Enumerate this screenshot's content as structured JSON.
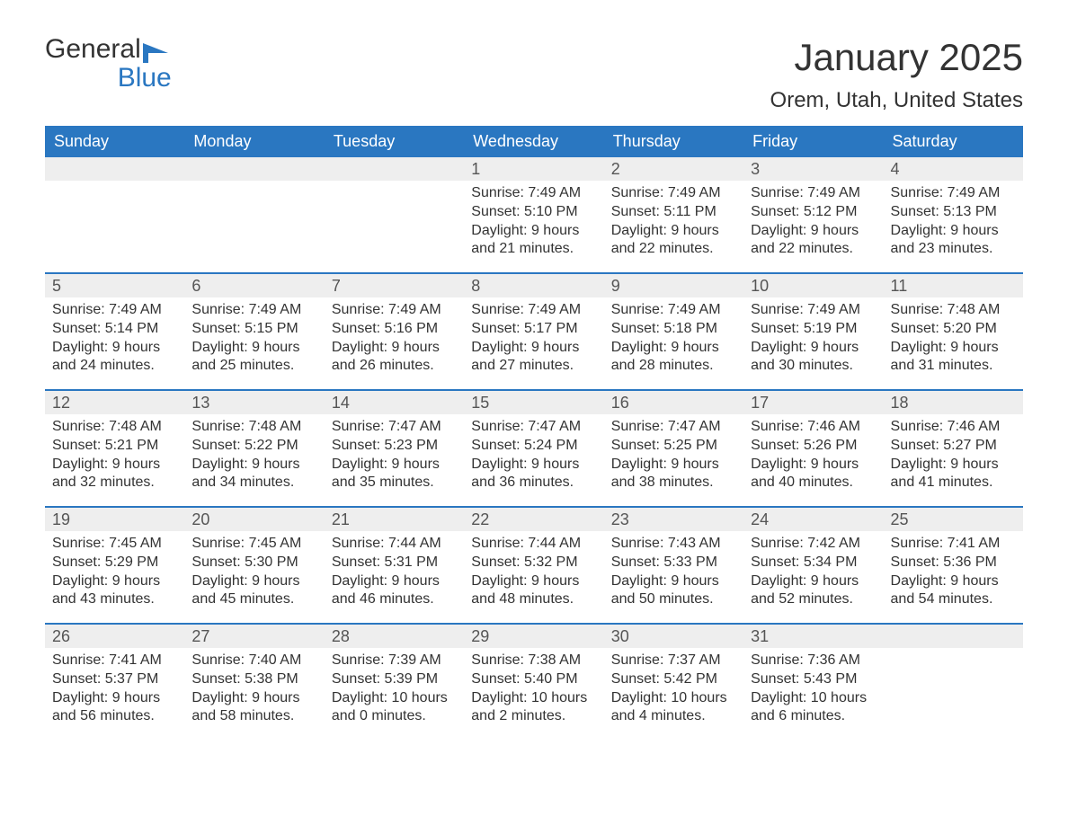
{
  "logo": {
    "text1": "General",
    "text2": "Blue",
    "text1_color": "#333333",
    "text2_color": "#2a77c1",
    "icon_color": "#2a77c1"
  },
  "title": "January 2025",
  "location": "Orem, Utah, United States",
  "colors": {
    "header_bg": "#2a77c1",
    "header_text": "#ffffff",
    "daynum_bg": "#eeeeee",
    "week_border": "#2a77c1",
    "body_text": "#333333"
  },
  "day_names": [
    "Sunday",
    "Monday",
    "Tuesday",
    "Wednesday",
    "Thursday",
    "Friday",
    "Saturday"
  ],
  "weeks": [
    [
      {
        "num": "",
        "sunrise": "",
        "sunset": "",
        "daylight1": "",
        "daylight2": ""
      },
      {
        "num": "",
        "sunrise": "",
        "sunset": "",
        "daylight1": "",
        "daylight2": ""
      },
      {
        "num": "",
        "sunrise": "",
        "sunset": "",
        "daylight1": "",
        "daylight2": ""
      },
      {
        "num": "1",
        "sunrise": "Sunrise: 7:49 AM",
        "sunset": "Sunset: 5:10 PM",
        "daylight1": "Daylight: 9 hours",
        "daylight2": "and 21 minutes."
      },
      {
        "num": "2",
        "sunrise": "Sunrise: 7:49 AM",
        "sunset": "Sunset: 5:11 PM",
        "daylight1": "Daylight: 9 hours",
        "daylight2": "and 22 minutes."
      },
      {
        "num": "3",
        "sunrise": "Sunrise: 7:49 AM",
        "sunset": "Sunset: 5:12 PM",
        "daylight1": "Daylight: 9 hours",
        "daylight2": "and 22 minutes."
      },
      {
        "num": "4",
        "sunrise": "Sunrise: 7:49 AM",
        "sunset": "Sunset: 5:13 PM",
        "daylight1": "Daylight: 9 hours",
        "daylight2": "and 23 minutes."
      }
    ],
    [
      {
        "num": "5",
        "sunrise": "Sunrise: 7:49 AM",
        "sunset": "Sunset: 5:14 PM",
        "daylight1": "Daylight: 9 hours",
        "daylight2": "and 24 minutes."
      },
      {
        "num": "6",
        "sunrise": "Sunrise: 7:49 AM",
        "sunset": "Sunset: 5:15 PM",
        "daylight1": "Daylight: 9 hours",
        "daylight2": "and 25 minutes."
      },
      {
        "num": "7",
        "sunrise": "Sunrise: 7:49 AM",
        "sunset": "Sunset: 5:16 PM",
        "daylight1": "Daylight: 9 hours",
        "daylight2": "and 26 minutes."
      },
      {
        "num": "8",
        "sunrise": "Sunrise: 7:49 AM",
        "sunset": "Sunset: 5:17 PM",
        "daylight1": "Daylight: 9 hours",
        "daylight2": "and 27 minutes."
      },
      {
        "num": "9",
        "sunrise": "Sunrise: 7:49 AM",
        "sunset": "Sunset: 5:18 PM",
        "daylight1": "Daylight: 9 hours",
        "daylight2": "and 28 minutes."
      },
      {
        "num": "10",
        "sunrise": "Sunrise: 7:49 AM",
        "sunset": "Sunset: 5:19 PM",
        "daylight1": "Daylight: 9 hours",
        "daylight2": "and 30 minutes."
      },
      {
        "num": "11",
        "sunrise": "Sunrise: 7:48 AM",
        "sunset": "Sunset: 5:20 PM",
        "daylight1": "Daylight: 9 hours",
        "daylight2": "and 31 minutes."
      }
    ],
    [
      {
        "num": "12",
        "sunrise": "Sunrise: 7:48 AM",
        "sunset": "Sunset: 5:21 PM",
        "daylight1": "Daylight: 9 hours",
        "daylight2": "and 32 minutes."
      },
      {
        "num": "13",
        "sunrise": "Sunrise: 7:48 AM",
        "sunset": "Sunset: 5:22 PM",
        "daylight1": "Daylight: 9 hours",
        "daylight2": "and 34 minutes."
      },
      {
        "num": "14",
        "sunrise": "Sunrise: 7:47 AM",
        "sunset": "Sunset: 5:23 PM",
        "daylight1": "Daylight: 9 hours",
        "daylight2": "and 35 minutes."
      },
      {
        "num": "15",
        "sunrise": "Sunrise: 7:47 AM",
        "sunset": "Sunset: 5:24 PM",
        "daylight1": "Daylight: 9 hours",
        "daylight2": "and 36 minutes."
      },
      {
        "num": "16",
        "sunrise": "Sunrise: 7:47 AM",
        "sunset": "Sunset: 5:25 PM",
        "daylight1": "Daylight: 9 hours",
        "daylight2": "and 38 minutes."
      },
      {
        "num": "17",
        "sunrise": "Sunrise: 7:46 AM",
        "sunset": "Sunset: 5:26 PM",
        "daylight1": "Daylight: 9 hours",
        "daylight2": "and 40 minutes."
      },
      {
        "num": "18",
        "sunrise": "Sunrise: 7:46 AM",
        "sunset": "Sunset: 5:27 PM",
        "daylight1": "Daylight: 9 hours",
        "daylight2": "and 41 minutes."
      }
    ],
    [
      {
        "num": "19",
        "sunrise": "Sunrise: 7:45 AM",
        "sunset": "Sunset: 5:29 PM",
        "daylight1": "Daylight: 9 hours",
        "daylight2": "and 43 minutes."
      },
      {
        "num": "20",
        "sunrise": "Sunrise: 7:45 AM",
        "sunset": "Sunset: 5:30 PM",
        "daylight1": "Daylight: 9 hours",
        "daylight2": "and 45 minutes."
      },
      {
        "num": "21",
        "sunrise": "Sunrise: 7:44 AM",
        "sunset": "Sunset: 5:31 PM",
        "daylight1": "Daylight: 9 hours",
        "daylight2": "and 46 minutes."
      },
      {
        "num": "22",
        "sunrise": "Sunrise: 7:44 AM",
        "sunset": "Sunset: 5:32 PM",
        "daylight1": "Daylight: 9 hours",
        "daylight2": "and 48 minutes."
      },
      {
        "num": "23",
        "sunrise": "Sunrise: 7:43 AM",
        "sunset": "Sunset: 5:33 PM",
        "daylight1": "Daylight: 9 hours",
        "daylight2": "and 50 minutes."
      },
      {
        "num": "24",
        "sunrise": "Sunrise: 7:42 AM",
        "sunset": "Sunset: 5:34 PM",
        "daylight1": "Daylight: 9 hours",
        "daylight2": "and 52 minutes."
      },
      {
        "num": "25",
        "sunrise": "Sunrise: 7:41 AM",
        "sunset": "Sunset: 5:36 PM",
        "daylight1": "Daylight: 9 hours",
        "daylight2": "and 54 minutes."
      }
    ],
    [
      {
        "num": "26",
        "sunrise": "Sunrise: 7:41 AM",
        "sunset": "Sunset: 5:37 PM",
        "daylight1": "Daylight: 9 hours",
        "daylight2": "and 56 minutes."
      },
      {
        "num": "27",
        "sunrise": "Sunrise: 7:40 AM",
        "sunset": "Sunset: 5:38 PM",
        "daylight1": "Daylight: 9 hours",
        "daylight2": "and 58 minutes."
      },
      {
        "num": "28",
        "sunrise": "Sunrise: 7:39 AM",
        "sunset": "Sunset: 5:39 PM",
        "daylight1": "Daylight: 10 hours",
        "daylight2": "and 0 minutes."
      },
      {
        "num": "29",
        "sunrise": "Sunrise: 7:38 AM",
        "sunset": "Sunset: 5:40 PM",
        "daylight1": "Daylight: 10 hours",
        "daylight2": "and 2 minutes."
      },
      {
        "num": "30",
        "sunrise": "Sunrise: 7:37 AM",
        "sunset": "Sunset: 5:42 PM",
        "daylight1": "Daylight: 10 hours",
        "daylight2": "and 4 minutes."
      },
      {
        "num": "31",
        "sunrise": "Sunrise: 7:36 AM",
        "sunset": "Sunset: 5:43 PM",
        "daylight1": "Daylight: 10 hours",
        "daylight2": "and 6 minutes."
      },
      {
        "num": "",
        "sunrise": "",
        "sunset": "",
        "daylight1": "",
        "daylight2": ""
      }
    ]
  ]
}
